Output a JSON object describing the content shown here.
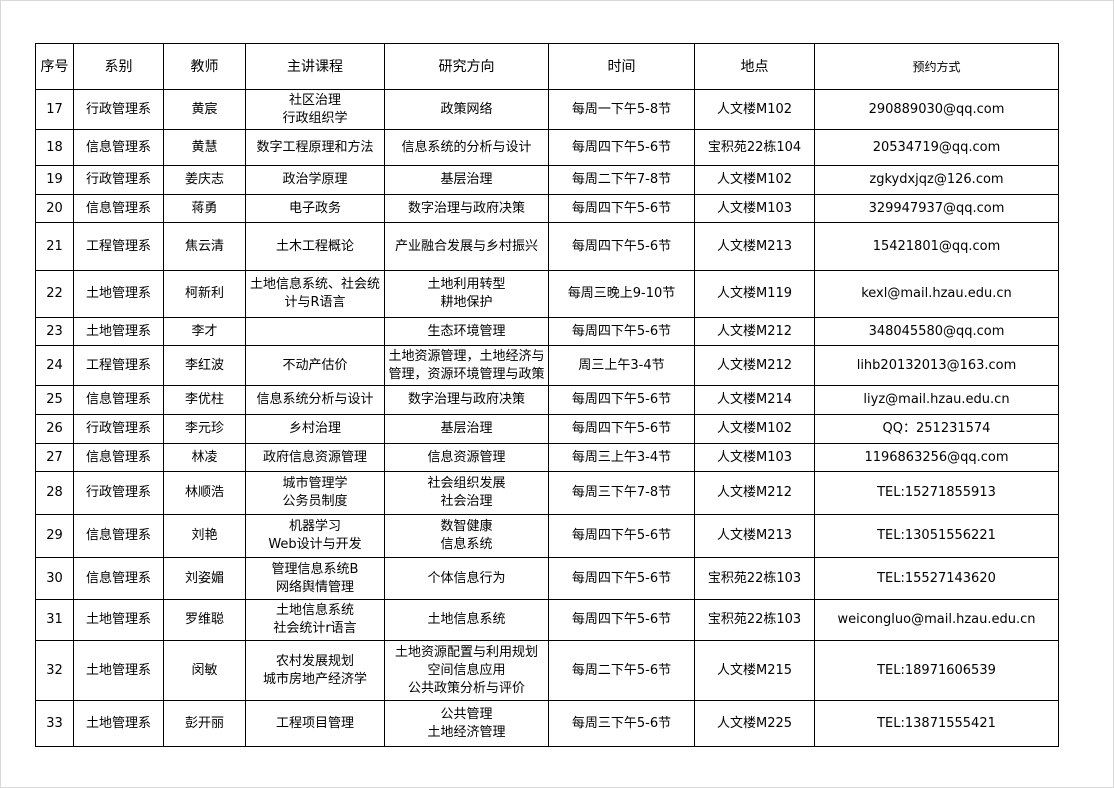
{
  "table": {
    "header": [
      "序号",
      "系别",
      "教师",
      "主讲课程",
      "研究方向",
      "时间",
      "地点",
      "预约方式"
    ],
    "rows": [
      [
        "17",
        "行政管理系",
        "黄宸",
        "社区治理\n行政组织学",
        "政策网络",
        "每周一下午5-8节",
        "人文楼M102",
        "290889030@qq.com"
      ],
      [
        "18",
        "信息管理系",
        "黄慧",
        "数字工程原理和方法",
        "信息系统的分析与设计",
        "每周四下午5-6节",
        "宝积苑22栋104",
        "20534719@qq.com"
      ],
      [
        "19",
        "行政管理系",
        "姜庆志",
        "政治学原理",
        "基层治理",
        "每周二下午7-8节",
        "人文楼M102",
        "zgkydxjqz@126.com"
      ],
      [
        "20",
        "信息管理系",
        "蒋勇",
        "电子政务",
        "数字治理与政府决策",
        "每周四下午5-6节",
        "人文楼M103",
        "329947937@qq.com"
      ],
      [
        "21",
        "工程管理系",
        "焦云清",
        "土木工程概论",
        "产业融合发展与乡村振兴",
        "每周四下午5-6节",
        "人文楼M213",
        "15421801@qq.com"
      ],
      [
        "22",
        "土地管理系",
        "柯新利",
        "土地信息系统、社会统\n计与R语言",
        "土地利用转型\n耕地保护",
        "每周三晚上9-10节",
        "人文楼M119",
        "kexl@mail.hzau.edu.cn"
      ],
      [
        "23",
        "土地管理系",
        "李才",
        null,
        "生态环境管理",
        "每周四下午5-6节",
        "人文楼M212",
        "348045580@qq.com"
      ],
      [
        "24",
        "工程管理系",
        "李红波",
        "不动产估价",
        "土地资源管理，土地经济与\n管理，资源环境管理与政策",
        "周三上午3-4节",
        "人文楼M212",
        "lihb20132013@163.com"
      ],
      [
        "25",
        "信息管理系",
        "李优柱",
        "信息系统分析与设计",
        "数字治理与政府决策",
        "每周四下午5-6节",
        "人文楼M214",
        "liyz@mail.hzau.edu.cn"
      ],
      [
        "26",
        "行政管理系",
        "李元珍",
        "乡村治理",
        "基层治理",
        "每周四下午5-6节",
        "人文楼M102",
        "QQ：251231574"
      ],
      [
        "27",
        "信息管理系",
        "林凌",
        "政府信息资源管理",
        "信息资源管理",
        "每周三上午3-4节",
        "人文楼M103",
        "1196863256@qq.com"
      ],
      [
        "28",
        "行政管理系",
        "林顺浩",
        "城市管理学\n公务员制度",
        "社会组织发展\n社会治理",
        "每周三下午7-8节",
        "人文楼M212",
        "TEL:15271855913"
      ],
      [
        "29",
        "信息管理系",
        "刘艳",
        "机器学习\nWeb设计与开发",
        "数智健康\n信息系统",
        "每周四下午5-6节",
        "人文楼M213",
        "TEL:13051556221"
      ],
      [
        "30",
        "信息管理系",
        "刘姿媚",
        "管理信息系统B\n网络舆情管理",
        "个体信息行为",
        "每周四下午5-6节",
        "宝积苑22栋103",
        "TEL:15527143620"
      ],
      [
        "31",
        "土地管理系",
        "罗维聪",
        "土地信息系统\n社会统计r语言",
        "土地信息系统",
        "每周四下午5-6节",
        "宝积苑22栋103",
        "weicongluo@mail.hzau.edu.cn"
      ],
      [
        "32",
        "土地管理系",
        "闵敏",
        "农村发展规划\n城市房地产经济学",
        "土地资源配置与利用规划\n空间信息应用\n公共政策分析与评价",
        "每周二下午5-6节",
        "人文楼M215",
        "TEL:18971606539"
      ],
      [
        "33",
        "土地管理系",
        "彭开丽",
        "工程项目管理",
        "公共管理\n土地经济管理",
        "每周三下午5-6节",
        "人文楼M225",
        "TEL:13871555421"
      ]
    ]
  }
}
